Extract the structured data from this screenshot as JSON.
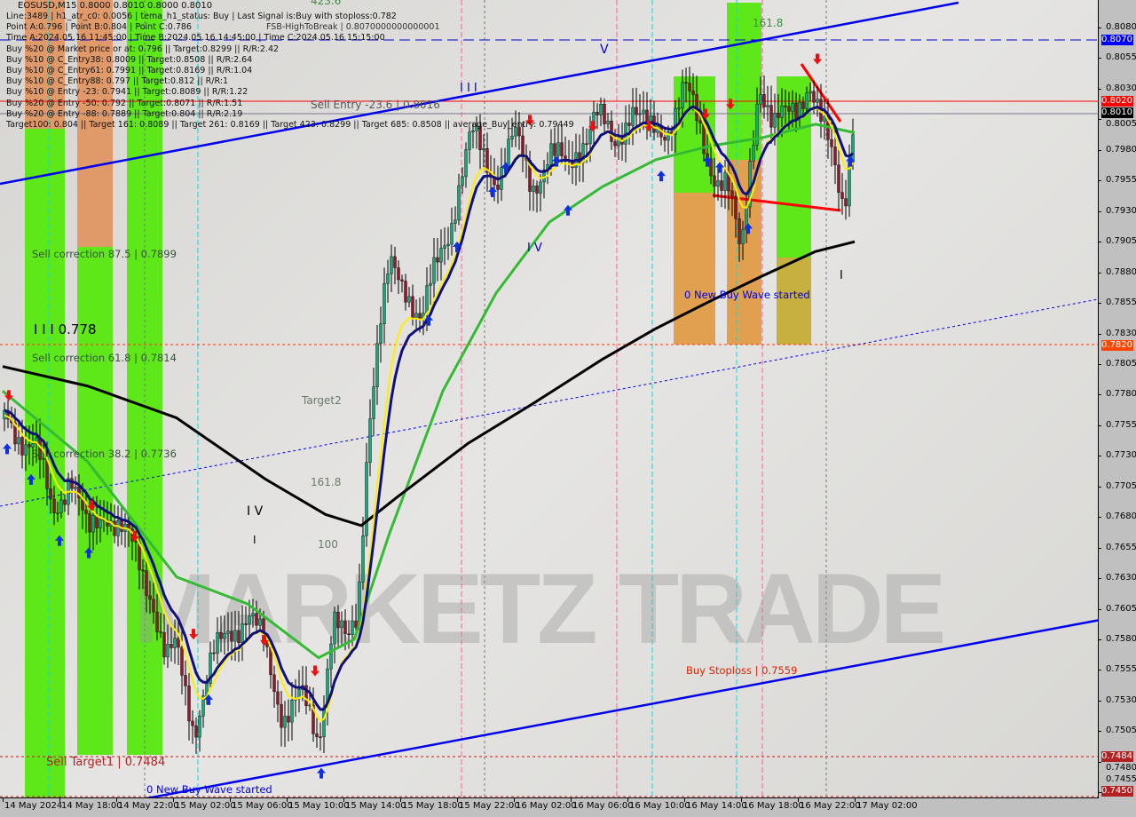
{
  "chart_data": {
    "type": "candlestick",
    "symbol_header": "EOSUSD,M15  0.8000 0.8010 0.8000 0.8010",
    "y_ticks": [
      "0.8080",
      "0.8055",
      "0.8030",
      "0.8005",
      "0.7980",
      "0.7955",
      "0.7930",
      "0.7905",
      "0.7880",
      "0.7855",
      "0.7830",
      "0.7805",
      "0.7780",
      "0.7755",
      "0.7730",
      "0.7705",
      "0.7680",
      "0.7655",
      "0.7630",
      "0.7605",
      "0.7580",
      "0.7555",
      "0.7530",
      "0.7505",
      "0.7480",
      "0.7455"
    ],
    "x_ticks": [
      "14 May 2024",
      "14 May 18:00",
      "14 May 22:00",
      "15 May 02:00",
      "15 May 06:00",
      "15 May 10:00",
      "15 May 14:00",
      "15 May 18:00",
      "15 May 22:00",
      "16 May 02:00",
      "16 May 06:00",
      "16 May 10:00",
      "16 May 14:00",
      "16 May 18:00",
      "16 May 22:00",
      "17 May 02:00"
    ],
    "price_tags": [
      {
        "value": "0.8070",
        "color": "#0000ff"
      },
      {
        "value": "0.8020",
        "color": "#ff0000"
      },
      {
        "value": "0.8010",
        "color": "#000000"
      },
      {
        "value": "0.7820",
        "color": "#ff4500"
      },
      {
        "value": "0.7484",
        "color": "#b22222"
      },
      {
        "value": "0.7450",
        "color": "#b22222"
      }
    ],
    "close_path": [
      [
        "2024-05-14 14:00",
        0.776
      ],
      [
        "2024-05-14 16:15",
        0.774
      ],
      [
        "2024-05-14 17:30",
        0.768
      ],
      [
        "2024-05-14 18:45",
        0.772
      ],
      [
        "2024-05-14 20:00",
        0.766
      ],
      [
        "2024-05-14 21:15",
        0.769
      ],
      [
        "2024-05-14 23:15",
        0.765
      ],
      [
        "2024-05-15 00:30",
        0.762
      ],
      [
        "2024-05-15 01:30",
        0.756
      ],
      [
        "2024-05-15 02:15",
        0.757
      ],
      [
        "2024-05-15 03:30",
        0.751
      ],
      [
        "2024-05-15 04:45",
        0.756
      ],
      [
        "2024-05-15 06:00",
        0.759
      ],
      [
        "2024-05-15 07:15",
        0.76
      ],
      [
        "2024-05-15 08:30",
        0.757
      ],
      [
        "2024-05-15 09:45",
        0.752
      ],
      [
        "2024-05-15 11:00",
        0.753
      ],
      [
        "2024-05-15 12:15",
        0.75
      ],
      [
        "2024-05-15 13:15",
        0.76
      ],
      [
        "2024-05-15 14:15",
        0.757
      ],
      [
        "2024-05-15 15:00",
        0.76
      ],
      [
        "2024-05-15 15:45",
        0.776
      ],
      [
        "2024-05-15 16:30",
        0.783
      ],
      [
        "2024-05-15 17:15",
        0.788
      ],
      [
        "2024-05-15 18:30",
        0.787
      ],
      [
        "2024-05-15 19:30",
        0.784
      ],
      [
        "2024-05-15 20:30",
        0.788
      ],
      [
        "2024-05-15 21:30",
        0.792
      ],
      [
        "2024-05-15 22:15",
        0.796
      ],
      [
        "2024-05-15 23:00",
        0.799
      ],
      [
        "2024-05-16 00:00",
        0.797
      ],
      [
        "2024-05-16 00:45",
        0.796
      ],
      [
        "2024-05-16 02:00",
        0.799
      ],
      [
        "2024-05-16 03:15",
        0.795
      ],
      [
        "2024-05-16 04:30",
        0.798
      ],
      [
        "2024-05-16 05:45",
        0.796
      ],
      [
        "2024-05-16 06:45",
        0.799
      ],
      [
        "2024-05-16 07:45",
        0.801
      ],
      [
        "2024-05-16 09:00",
        0.798
      ],
      [
        "2024-05-16 10:15",
        0.802
      ],
      [
        "2024-05-16 11:30",
        0.799
      ],
      [
        "2024-05-16 12:45",
        0.8
      ],
      [
        "2024-05-16 14:00",
        0.803
      ],
      [
        "2024-05-16 15:15",
        0.799
      ],
      [
        "2024-05-16 16:15",
        0.796
      ],
      [
        "2024-05-16 17:00",
        0.795
      ],
      [
        "2024-05-16 18:00",
        0.789
      ],
      [
        "2024-05-16 18:30",
        0.796
      ],
      [
        "2024-05-16 19:15",
        0.804
      ],
      [
        "2024-05-16 20:15",
        0.799
      ],
      [
        "2024-05-16 21:30",
        0.802
      ],
      [
        "2024-05-16 22:45",
        0.803
      ],
      [
        "2024-05-16 23:30",
        0.8
      ],
      [
        "2024-05-17 00:30",
        0.798
      ],
      [
        "2024-05-17 01:15",
        0.794
      ],
      [
        "2024-05-17 01:45",
        0.798
      ],
      [
        "2024-05-17 02:00",
        0.801
      ]
    ],
    "ma_black": [
      [
        "2024-05-14 14:00",
        0.7803
      ],
      [
        "2024-05-14 20:00",
        0.7787
      ],
      [
        "2024-05-15 02:15",
        0.7761
      ],
      [
        "2024-05-15 08:30",
        0.7711
      ],
      [
        "2024-05-15 12:45",
        0.7682
      ],
      [
        "2024-05-15 15:15",
        0.7673
      ],
      [
        "2024-05-15 17:45",
        0.7696
      ],
      [
        "2024-05-15 22:45",
        0.774
      ],
      [
        "2024-05-16 03:15",
        0.7772
      ],
      [
        "2024-05-16 08:15",
        0.7809
      ],
      [
        "2024-05-16 12:00",
        0.7834
      ],
      [
        "2024-05-16 15:45",
        0.7856
      ],
      [
        "2024-05-16 19:30",
        0.7877
      ],
      [
        "2024-05-16 23:15",
        0.7897
      ],
      [
        "2024-05-17 02:00",
        0.7905
      ]
    ],
    "ma_green": [
      [
        "2024-05-14 14:00",
        0.7783
      ],
      [
        "2024-05-14 20:00",
        0.7725
      ],
      [
        "2024-05-15 02:15",
        0.7631
      ],
      [
        "2024-05-15 07:15",
        0.7609
      ],
      [
        "2024-05-15 12:15",
        0.7565
      ],
      [
        "2024-05-15 14:45",
        0.758
      ],
      [
        "2024-05-15 17:15",
        0.7667
      ],
      [
        "2024-05-15 21:00",
        0.7783
      ],
      [
        "2024-05-16 00:45",
        0.7863
      ],
      [
        "2024-05-16 04:30",
        0.7921
      ],
      [
        "2024-05-16 08:15",
        0.795
      ],
      [
        "2024-05-16 12:00",
        0.7972
      ],
      [
        "2024-05-16 15:45",
        0.7983
      ],
      [
        "2024-05-16 19:30",
        0.799
      ],
      [
        "2024-05-16 23:15",
        0.8001
      ],
      [
        "2024-05-17 02:00",
        0.7994
      ]
    ],
    "colors": {
      "bull": "#1aa67a",
      "bear": "#8b1a2a",
      "ma_black": "#000000",
      "ma_green": "#33bb33",
      "ma_navy": "#10107a",
      "ma_yellow": "#ffee00",
      "zone_green": "#5ee81a",
      "zone_orange": "#e09a6a",
      "channel": "#0000ff"
    }
  },
  "info_lines": [
    "Line:3489 | h1_atr_c0: 0.0056 | tema_h1_status: Buy | Last Signal is:Buy with stoploss:0.782",
    "Point A:0.796 | Point B:0.804 | Point C:0.786",
    "Time A:2024.05.16 11:45:00 | Time B:2024.05.16 14:45:00 | Time C:2024.05.16 15:15:00",
    "Buy %20 @ Market price or at: 0.796 || Target:0.8299 || R/R:2.42",
    "Buy %10 @ C_Entry38: 0.8009 || Target:0.8508 || R/R:2.64",
    "Buy %10 @ C_Entry61: 0.7991 || Target:0.8169 || R/R:1.04",
    "Buy %10 @ C_Entry88: 0.797 || Target:0.812 || R/R:1",
    "Buy %10 @ Entry -23: 0.7941 || Target:0.8089 || R/R:1.22",
    "Buy %20 @ Entry -50: 0.792 || Target:0.8071 || R/R:1.51",
    "Buy %20 @ Entry -88: 0.7889 || Target:0.804 || R/R:2.19",
    "Target100: 0.804 || Target 161: 0.8089 || Target 261: 0.8169 || Target 423: 0.8299 || Target 685: 0.8508 || average_Buy_entry: 0.79449"
  ],
  "labels": {
    "fsb": "FSB-HighToBreak | 0.8070000000000001",
    "sell_entry": "Sell Entry -23.6 | 0.8016",
    "fib_423": "423.6",
    "fib_161_top": "161.8",
    "sell_corr_875": "Sell correction 87.5 | 0.7899",
    "wave_iii": "I I I  0.778",
    "sell_corr_618": "Sell correction 61.8 | 0.7814",
    "sell_corr_382": "Sell correction 38.2 | 0.7736",
    "target2": "Target2",
    "fib_161_mid": "161.8",
    "fib_100": "100",
    "wave_iv_left": "I V",
    "wave_i_left": "I",
    "sell_target1": "Sell Target1 | 0.7484",
    "new_buy_wave_bottom": "0 New Buy Wave started",
    "new_buy_wave_right": "0 New Buy Wave started",
    "buy_stoploss": "Buy Stoploss | 0.7559",
    "wave_v": "V",
    "wave_iii_top": "I I I",
    "wave_iv_mid": "I V",
    "wave_i_right": "I"
  },
  "watermark": "MARKETZ TRADE"
}
